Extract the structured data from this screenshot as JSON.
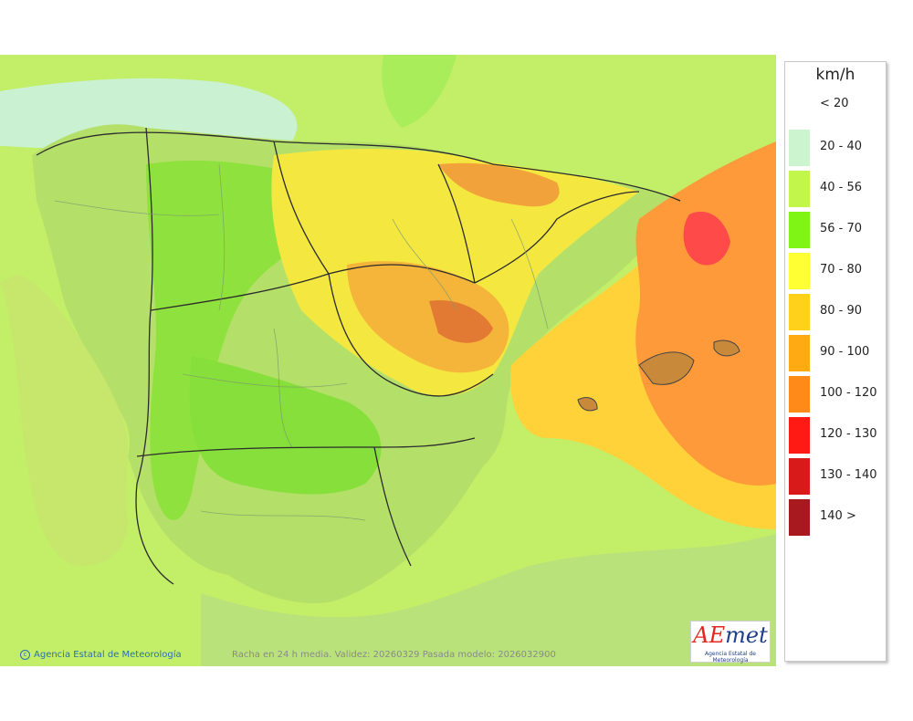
{
  "legend": {
    "unit": "km/h",
    "below_label": "< 20",
    "classes": [
      {
        "label": "20 - 40",
        "color": "#ccf5cf"
      },
      {
        "label": "40 - 56",
        "color": "#c2f64a"
      },
      {
        "label": "56 - 70",
        "color": "#7ef514"
      },
      {
        "label": "70 - 80",
        "color": "#ffff33"
      },
      {
        "label": "80 - 90",
        "color": "#ffd11b"
      },
      {
        "label": "90 - 100",
        "color": "#ffaa13"
      },
      {
        "label": "100 - 120",
        "color": "#ff8a1a"
      },
      {
        "label": "120 - 130",
        "color": "#ff1a14"
      },
      {
        "label": "130 - 140",
        "color": "#d81a1a"
      },
      {
        "label": "140 >",
        "color": "#a8181f"
      }
    ]
  },
  "credit": "Agencia Estatal de Meteorología",
  "info": "Racha en 24 h media. Validez: 20260329 Pasada modelo: 2026032900",
  "logo": {
    "text_a": "AE",
    "text_b": "met",
    "subtitle": "Agencia Estatal de Meteorología"
  },
  "colors": {
    "sea_base": "#c6f06a",
    "land_base": "#b9e27a",
    "border": "#333333"
  }
}
